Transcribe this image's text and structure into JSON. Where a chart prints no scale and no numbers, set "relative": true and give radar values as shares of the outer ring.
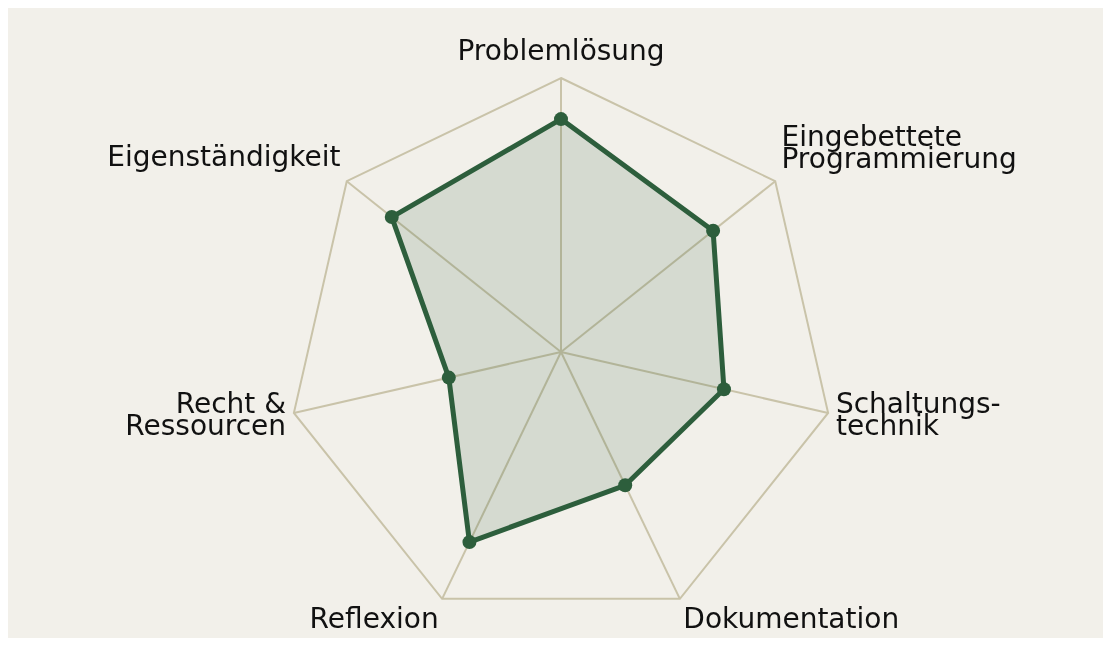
{
  "chart_data": {
    "type": "radar",
    "relative": true,
    "grid": true,
    "marker": "circle",
    "legend": false,
    "categories": [
      "Problemlösung",
      "Eingebettete\nProgrammierung",
      "Schaltungs-\ntechnik",
      "Dokumentation",
      "Reflexion",
      "Recht &\nRessourcen",
      "Eigenständigkeit"
    ],
    "series": [
      {
        "color": "#2d5e3c",
        "values": [
          0.85,
          0.71,
          0.61,
          0.54,
          0.77,
          0.42,
          0.79
        ]
      }
    ]
  }
}
